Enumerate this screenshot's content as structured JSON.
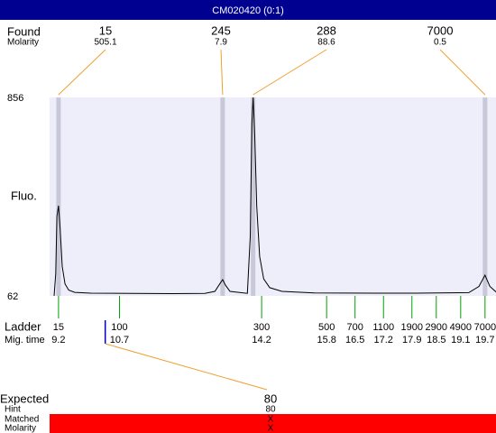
{
  "chart_data": {
    "type": "line",
    "title": "CM020420 (0:1)",
    "y_label": "Fluo.",
    "ylim": [
      62,
      856
    ],
    "yticks": [
      856,
      62
    ],
    "xlim": [
      8.98,
      19.97
    ],
    "color": "#000000",
    "x": [
      9.09,
      9.13,
      9.16,
      9.2,
      9.24,
      9.29,
      9.36,
      9.45,
      9.6,
      10.0,
      11.0,
      12.0,
      12.8,
      13.05,
      13.17,
      13.24,
      13.31,
      13.42,
      13.85,
      13.92,
      13.96,
      13.99,
      14.03,
      14.08,
      14.15,
      14.25,
      14.4,
      14.7,
      15.5,
      17.0,
      18.0,
      19.3,
      19.55,
      19.7,
      19.82,
      19.97
    ],
    "values": [
      62,
      150,
      380,
      423,
      330,
      180,
      110,
      85,
      76,
      73,
      72,
      71,
      72,
      80,
      110,
      127,
      105,
      80,
      72,
      300,
      750,
      856,
      700,
      420,
      220,
      130,
      95,
      80,
      74,
      73,
      73,
      75,
      100,
      145,
      100,
      78
    ],
    "found": {
      "label": "Found",
      "sublabel": "Molarity",
      "sizes": [
        15,
        245,
        288,
        7000
      ],
      "molarity": [
        505.1,
        7.9,
        88.6,
        0.5
      ],
      "times": [
        9.2,
        13.24,
        13.99,
        19.7
      ]
    },
    "ladder": {
      "label": "Ladder",
      "sublabel": "Mig. time",
      "sizes": [
        15,
        100,
        300,
        500,
        700,
        1100,
        1900,
        2900,
        4900,
        7000
      ],
      "times": [
        9.2,
        10.7,
        14.2,
        15.8,
        16.5,
        17.2,
        17.9,
        18.5,
        19.1,
        19.7
      ]
    },
    "expected": {
      "label": "Expected",
      "value": 80,
      "time": 10.35,
      "hint_label": "Hint",
      "hint": 80,
      "matched_label": "Matched",
      "matched": "X",
      "molarity_label": "Molarity",
      "molarity": "X"
    }
  }
}
